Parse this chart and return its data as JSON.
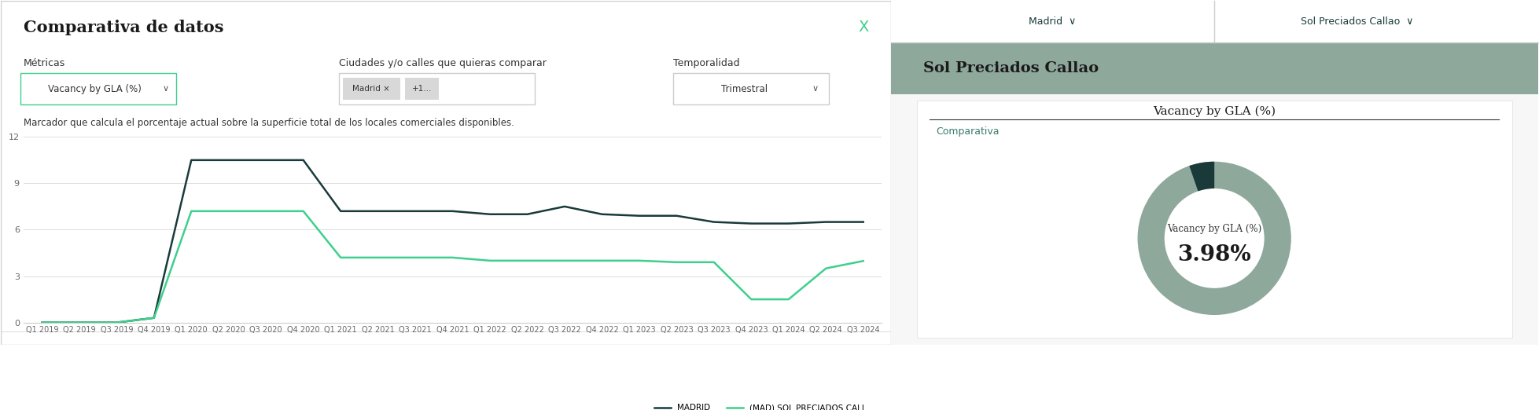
{
  "title_left": "Comparativa de datos",
  "close_icon": "X",
  "metricas_label": "Métricas",
  "metricas_value": "Vacancy by GLA (%)",
  "ciudades_label": "Ciudades y/o calles que quieras comparar",
  "ciudades_value": "Madrid  +1...",
  "temporalidad_label": "Temporalidad",
  "temporalidad_value": "Trimestral",
  "description": "Marcador que calcula el porcentaje actual sobre la superficie total de los locales comerciales disponibles.",
  "x_labels": [
    "Q1 2019",
    "Q2 2019",
    "Q3 2019",
    "Q4 2019",
    "Q1 2020",
    "Q2 2020",
    "Q3 2020",
    "Q4 2020",
    "Q1 2021",
    "Q2 2021",
    "Q3 2021",
    "Q4 2021",
    "Q1 2022",
    "Q2 2022",
    "Q3 2022",
    "Q4 2022",
    "Q1 2023",
    "Q2 2023",
    "Q3 2023",
    "Q4 2023",
    "Q1 2024",
    "Q2 2024",
    "Q3 2024"
  ],
  "madrid_values": [
    0.0,
    0.0,
    0.0,
    0.3,
    10.5,
    10.5,
    10.5,
    10.5,
    7.2,
    7.2,
    7.2,
    7.2,
    7.0,
    7.0,
    7.5,
    7.0,
    6.9,
    6.9,
    6.5,
    6.4,
    6.4,
    6.5,
    6.5
  ],
  "sol_values": [
    0.0,
    0.0,
    0.0,
    0.3,
    7.2,
    7.2,
    7.2,
    7.2,
    4.2,
    4.2,
    4.2,
    4.2,
    4.0,
    4.0,
    4.0,
    4.0,
    4.0,
    3.9,
    3.9,
    1.5,
    1.5,
    3.5,
    3.98
  ],
  "madrid_color": "#1a3a3a",
  "sol_color": "#3ecf8e",
  "legend_madrid": "MADRID",
  "legend_sol": "(MAD) SOL PRECIADOS CALL...",
  "ylim": [
    0,
    12
  ],
  "yticks": [
    0,
    3,
    6,
    9,
    12
  ],
  "right_header_bg": "#8fa89c",
  "right_title": "Sol Preciados Callao",
  "right_metric_title": "Vacancy by GLA (%)",
  "right_comparativa": "Comparativa",
  "donut_center_label": "Vacancy by GLA (%)",
  "donut_center_value": "3.98%",
  "donut_outer_color": "#8fa89c",
  "donut_inner_color": "#1a3a3a",
  "donut_inner_pct": 0.053,
  "nav_tab1": "Madrid",
  "nav_tab2": "Sol Preciados Callao",
  "bg_color": "#ffffff",
  "border_color": "#cccccc",
  "grid_color": "#dddddd"
}
